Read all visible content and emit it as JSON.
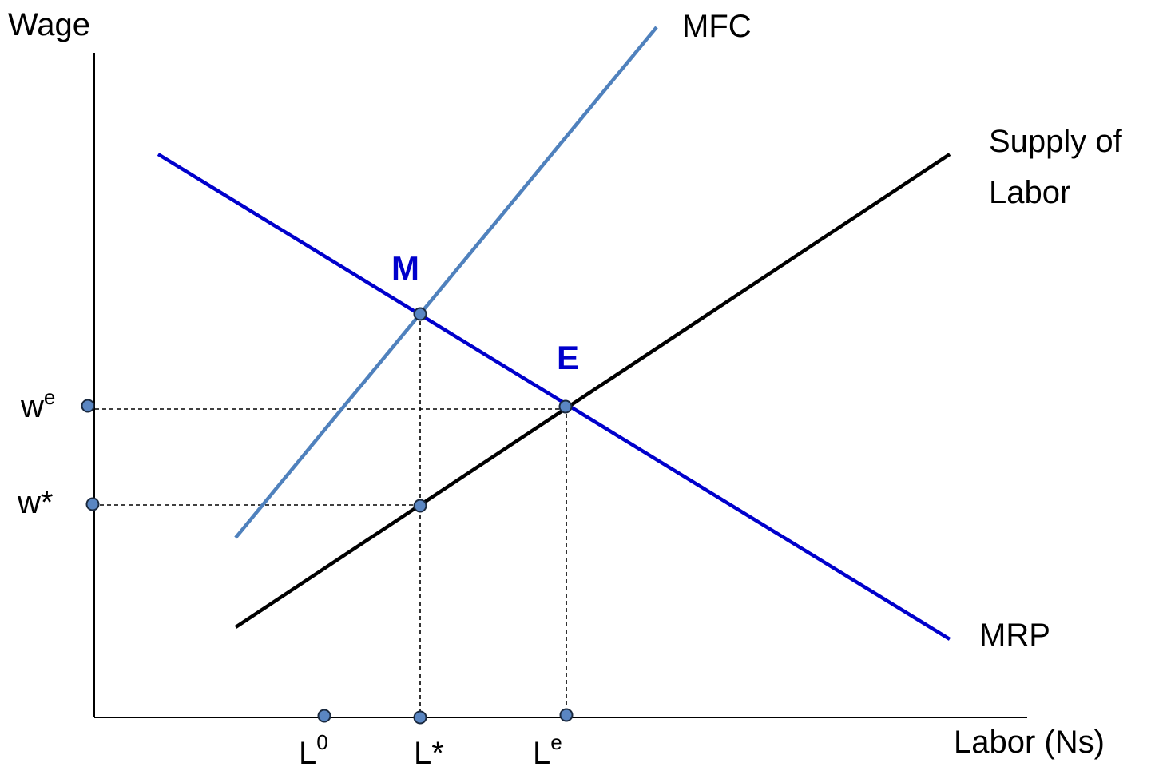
{
  "axes": {
    "y_label": "Wage",
    "x_label": "Labor (Ns)"
  },
  "curves": {
    "mfc": {
      "label": "MFC",
      "color": "#4f81bd"
    },
    "supply": {
      "label_line1": "Supply of",
      "label_line2": "Labor",
      "color": "#000000"
    },
    "mrp": {
      "label": "MRP",
      "color": "#0000cc"
    }
  },
  "points": {
    "m": {
      "label": "M",
      "color": "#0000cc"
    },
    "e": {
      "label": "E",
      "color": "#0000cc"
    }
  },
  "y_ticks": [
    {
      "base": "w",
      "sup": "e"
    },
    {
      "base": "w*",
      "sup": ""
    }
  ],
  "x_ticks": [
    {
      "base": "L",
      "sup": "0"
    },
    {
      "base": "L*",
      "sup": ""
    },
    {
      "base": "L",
      "sup": "e"
    }
  ],
  "colors": {
    "marker_fill": "#5a86c2",
    "axis": "#000000"
  }
}
